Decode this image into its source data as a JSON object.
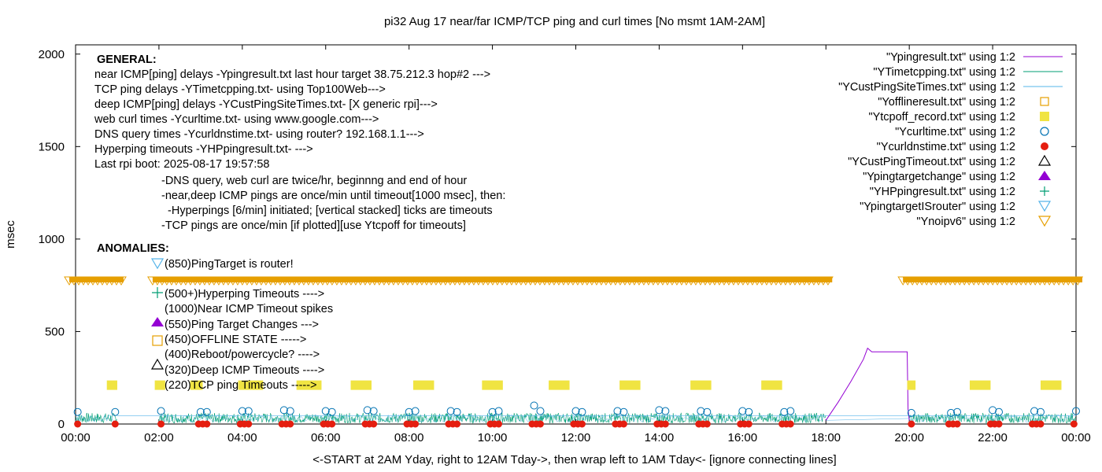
{
  "chart_data": {
    "type": "scatter",
    "title": "pi32 Aug 17  near/far ICMP/TCP ping and curl times [No msmt 1AM-2AM]",
    "xlabel": "<-START at 2AM Yday, right to 12AM Tday->, then wrap left to 1AM Tday<- [ignore connecting lines]",
    "ylabel": "msec",
    "xlim": [
      0,
      24
    ],
    "ylim": [
      0,
      2050
    ],
    "x_ticks": [
      "00:00",
      "02:00",
      "04:00",
      "06:00",
      "08:00",
      "10:00",
      "12:00",
      "14:00",
      "16:00",
      "18:00",
      "20:00",
      "22:00",
      "00:00"
    ],
    "y_ticks": [
      "0",
      "500",
      "1000",
      "1500",
      "2000"
    ],
    "grid": false,
    "legend_position": "top-right",
    "annotations": {
      "general_title": "GENERAL:",
      "general_lines": [
        "near ICMP[ping] delays -Ypingresult.txt last hour target 38.75.212.3 hop#2 --->",
        "TCP ping delays -YTimetcpping.txt- using Top100Web--->",
        "deep ICMP[ping] delays -YCustPingSiteTimes.txt- [X generic rpi]--->",
        "web curl times -Ycurltime.txt- using www.google.com--->",
        "DNS query times -Ycurldnstime.txt- using router? 192.168.1.1--->",
        "Hyperping timeouts -YHPpingresult.txt- --->",
        "Last rpi boot: 2025-08-17 19:57:58"
      ],
      "notes": [
        "-DNS query, web curl are twice/hr, beginnng and end of hour",
        "-near,deep ICMP pings are once/min until timeout[1000 msec], then:",
        "  -Hyperpings [6/min] initiated; [vertical stacked] ticks are timeouts",
        "-TCP pings are once/min [if plotted][use Ytcpoff for timeouts]"
      ],
      "anomalies_title": "ANOMALIES:",
      "anomalies": [
        "(850)PingTarget is router!",
        "(500+)Hyperping Timeouts ---->",
        "(1000)Near ICMP Timeout spikes",
        "(550)Ping Target Changes --->",
        "(450)OFFLINE STATE ----->",
        "(400)Reboot/powercycle? ---->",
        "(320)Deep ICMP Timeouts ---->",
        "(220)TCP ping Timeouts ----->"
      ]
    },
    "legend": [
      {
        "label": "\"Ypingresult.txt\" using 1:2",
        "symbol": "line",
        "color": "#9400d3"
      },
      {
        "label": "\"YTimetcpping.txt\" using 1:2",
        "symbol": "line",
        "color": "#009e73"
      },
      {
        "label": "\"YCustPingSiteTimes.txt\" using 1:2",
        "symbol": "line",
        "color": "#56b4e9"
      },
      {
        "label": "\"Yofflineresult.txt\" using 1:2",
        "symbol": "square-open",
        "color": "#e69f00"
      },
      {
        "label": "\"Ytcpoff_record.txt\" using 1:2",
        "symbol": "square-filled",
        "color": "#f0e442"
      },
      {
        "label": "\"Ycurltime.txt\" using 1:2",
        "symbol": "circle-open",
        "color": "#0072b2"
      },
      {
        "label": "\"Ycurldnstime.txt\" using 1:2",
        "symbol": "circle-filled",
        "color": "#e51e10"
      },
      {
        "label": "\"YCustPingTimeout.txt\" using 1:2",
        "symbol": "triangle-open",
        "color": "#000000"
      },
      {
        "label": "\"Ypingtargetchange\" using 1:2",
        "symbol": "triangle-filled",
        "color": "#9400d3"
      },
      {
        "label": "\"YHPpingresult.txt\" using 1:2",
        "symbol": "plus",
        "color": "#009e73"
      },
      {
        "label": "\"YpingtargetISrouter\" using 1:2",
        "symbol": "triangle-down-open",
        "color": "#56b4e9"
      },
      {
        "label": "\"Ynoipv6\" using 1:2",
        "symbol": "triangle-down-open",
        "color": "#e69f00"
      }
    ],
    "series": [
      {
        "name": "\"Ypingresult.txt\" using 1:2",
        "kind": "line",
        "color": "#9400d3",
        "x": [
          18.0,
          18.3,
          18.6,
          18.9,
          19.0,
          19.1,
          19.4,
          19.7,
          19.95,
          19.97,
          20.0
        ],
        "y": [
          20,
          120,
          230,
          350,
          410,
          390,
          390,
          390,
          390,
          80,
          20
        ]
      },
      {
        "name": "\"Ynoipv6\" using 1:2",
        "kind": "markers-band",
        "color": "#e69f00",
        "y": 770,
        "ranges": [
          [
            0.0,
            1.0
          ],
          [
            2.0,
            18.0
          ],
          [
            20.0,
            24.0
          ]
        ]
      },
      {
        "name": "\"Ytcpoff_record.txt\" using 1:2",
        "kind": "markers",
        "color": "#f0e442",
        "y_level": 210,
        "x_ranges": [
          [
            0.75,
            1.0
          ],
          [
            1.9,
            2.15
          ],
          [
            2.75,
            3.05
          ],
          [
            3.9,
            4.5
          ],
          [
            5.3,
            5.9
          ],
          [
            6.6,
            7.1
          ],
          [
            8.1,
            8.6
          ],
          [
            9.75,
            10.25
          ],
          [
            11.35,
            11.85
          ],
          [
            13.05,
            13.55
          ],
          [
            14.75,
            15.25
          ],
          [
            16.45,
            16.95
          ],
          [
            19.95,
            20.15
          ],
          [
            21.45,
            21.95
          ],
          [
            23.15,
            23.65
          ]
        ]
      },
      {
        "name": "\"Ycurltime.txt\" using 1:2",
        "kind": "markers",
        "color": "#0072b2",
        "x": [
          0.05,
          0.95,
          2.05,
          3.0,
          3.15,
          4.0,
          4.15,
          5.0,
          5.15,
          6.0,
          6.15,
          7.0,
          7.15,
          8.0,
          8.15,
          9.0,
          9.15,
          10.0,
          10.15,
          11.0,
          11.15,
          12.0,
          12.15,
          13.0,
          13.15,
          14.0,
          14.15,
          15.0,
          15.15,
          16.0,
          16.15,
          17.0,
          17.15,
          20.05,
          21.0,
          21.15,
          22.0,
          22.15,
          23.0,
          23.15,
          24.0
        ],
        "y": [
          65,
          65,
          70,
          65,
          65,
          70,
          70,
          75,
          70,
          70,
          65,
          75,
          70,
          65,
          70,
          70,
          65,
          65,
          70,
          100,
          70,
          70,
          65,
          70,
          65,
          75,
          70,
          70,
          65,
          70,
          65,
          65,
          70,
          60,
          60,
          65,
          75,
          65,
          70,
          65,
          70
        ]
      },
      {
        "name": "\"Ycurldnstime.txt\" using 1:2",
        "kind": "markers",
        "color": "#e51e10",
        "x": [
          0.05,
          0.95,
          2.05,
          2.95,
          3.05,
          3.15,
          3.95,
          4.05,
          4.15,
          4.95,
          5.05,
          5.15,
          5.95,
          6.05,
          6.15,
          6.95,
          7.05,
          7.15,
          7.95,
          8.05,
          8.15,
          8.95,
          9.05,
          9.15,
          9.95,
          10.05,
          10.15,
          10.95,
          11.05,
          11.15,
          11.95,
          12.05,
          12.15,
          12.95,
          13.05,
          13.15,
          13.95,
          14.05,
          14.15,
          14.95,
          15.05,
          15.15,
          15.95,
          16.05,
          16.15,
          16.95,
          17.05,
          17.15,
          20.05,
          20.95,
          21.05,
          21.15,
          21.95,
          22.05,
          22.15,
          22.95,
          23.05,
          23.15,
          23.95
        ],
        "y": 0
      },
      {
        "name": "\"YTimetcpping.txt\" using 1:2",
        "kind": "line",
        "color": "#009e73",
        "description_range_msec": [
          5,
          60
        ]
      },
      {
        "name": "\"YCustPingSiteTimes.txt\" using 1:2",
        "kind": "line",
        "color": "#56b4e9",
        "description_range_msec": [
          10,
          50
        ]
      }
    ]
  }
}
